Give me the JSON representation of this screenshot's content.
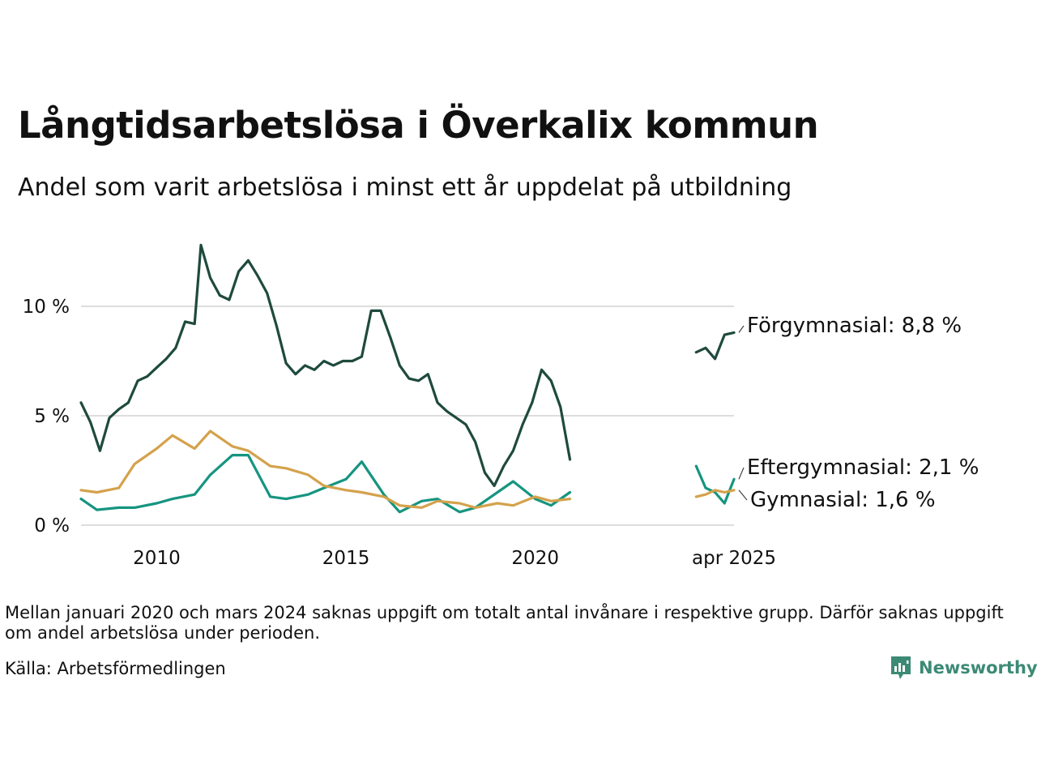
{
  "title": "Långtidsarbetslösa i Överkalix kommun",
  "subtitle": "Andel som varit arbetslösa i minst ett år uppdelat på utbildning",
  "note": "Mellan januari 2020 och mars 2024 saknas uppgift om totalt antal invånare i respektive grupp. Därför saknas uppgift om andel arbetslösa under perioden.",
  "source": "Källa: Arbetsförmedlingen",
  "brand": "Newsworthy",
  "colors": {
    "forgymnasial": "#1f4a3e",
    "eftergymnasial": "#169580",
    "gymnasial": "#d4a24c",
    "grid": "#dddddd",
    "brand": "#3c8a74"
  },
  "chart_data": {
    "type": "line",
    "x_unit": "month",
    "xlim": [
      "2008-01",
      "2025-04"
    ],
    "ylim": [
      0,
      13
    ],
    "y_ticks": [
      0,
      5,
      10
    ],
    "y_tick_labels": [
      "0 %",
      "5 %",
      "10 %"
    ],
    "x_ticks": [
      "2010-01",
      "2015-01",
      "2020-01",
      "2025-04"
    ],
    "x_tick_labels": [
      "2010",
      "2015",
      "2020",
      "apr 2025"
    ],
    "grid": true,
    "legend": "end-of-line labels",
    "segments": [
      {
        "start": "2008-01",
        "end": "2020-12"
      },
      {
        "start": "2024-04",
        "end": "2025-04"
      }
    ],
    "series": [
      {
        "key": "forgymnasial",
        "label": "Förgymnasial: 8,8 %",
        "points": [
          [
            "2008-01",
            5.6
          ],
          [
            "2008-04",
            4.7
          ],
          [
            "2008-07",
            3.4
          ],
          [
            "2008-10",
            4.9
          ],
          [
            "2009-01",
            5.3
          ],
          [
            "2009-04",
            5.6
          ],
          [
            "2009-07",
            6.6
          ],
          [
            "2009-10",
            6.8
          ],
          [
            "2010-01",
            7.2
          ],
          [
            "2010-04",
            7.6
          ],
          [
            "2010-07",
            8.1
          ],
          [
            "2010-10",
            9.3
          ],
          [
            "2011-01",
            9.2
          ],
          [
            "2011-03",
            12.8
          ],
          [
            "2011-06",
            11.3
          ],
          [
            "2011-09",
            10.5
          ],
          [
            "2011-12",
            10.3
          ],
          [
            "2012-03",
            11.6
          ],
          [
            "2012-06",
            12.1
          ],
          [
            "2012-09",
            11.4
          ],
          [
            "2012-12",
            10.6
          ],
          [
            "2013-03",
            9.1
          ],
          [
            "2013-06",
            7.4
          ],
          [
            "2013-09",
            6.9
          ],
          [
            "2013-12",
            7.3
          ],
          [
            "2014-03",
            7.1
          ],
          [
            "2014-06",
            7.5
          ],
          [
            "2014-09",
            7.3
          ],
          [
            "2014-12",
            7.5
          ],
          [
            "2015-03",
            7.5
          ],
          [
            "2015-06",
            7.7
          ],
          [
            "2015-09",
            9.8
          ],
          [
            "2015-12",
            9.8
          ],
          [
            "2016-03",
            8.6
          ],
          [
            "2016-06",
            7.3
          ],
          [
            "2016-09",
            6.7
          ],
          [
            "2016-12",
            6.6
          ],
          [
            "2017-03",
            6.9
          ],
          [
            "2017-06",
            5.6
          ],
          [
            "2017-09",
            5.2
          ],
          [
            "2017-12",
            4.9
          ],
          [
            "2018-03",
            4.6
          ],
          [
            "2018-06",
            3.8
          ],
          [
            "2018-09",
            2.4
          ],
          [
            "2018-12",
            1.8
          ],
          [
            "2019-03",
            2.7
          ],
          [
            "2019-06",
            3.4
          ],
          [
            "2019-09",
            4.6
          ],
          [
            "2019-12",
            5.6
          ],
          [
            "2020-03",
            7.1
          ],
          [
            "2020-06",
            6.6
          ],
          [
            "2020-09",
            5.4
          ],
          [
            "2020-12",
            3.0
          ],
          [
            "2024-04",
            7.9
          ],
          [
            "2024-07",
            8.1
          ],
          [
            "2024-10",
            7.6
          ],
          [
            "2025-01",
            8.7
          ],
          [
            "2025-04",
            8.8
          ]
        ]
      },
      {
        "key": "eftergymnasial",
        "label": "Eftergymnasial: 2,1 %",
        "points": [
          [
            "2008-01",
            1.2
          ],
          [
            "2008-06",
            0.7
          ],
          [
            "2009-01",
            0.8
          ],
          [
            "2009-06",
            0.8
          ],
          [
            "2010-01",
            1.0
          ],
          [
            "2010-06",
            1.2
          ],
          [
            "2011-01",
            1.4
          ],
          [
            "2011-06",
            2.3
          ],
          [
            "2012-01",
            3.2
          ],
          [
            "2012-06",
            3.2
          ],
          [
            "2013-01",
            1.3
          ],
          [
            "2013-06",
            1.2
          ],
          [
            "2014-01",
            1.4
          ],
          [
            "2014-06",
            1.7
          ],
          [
            "2015-01",
            2.1
          ],
          [
            "2015-06",
            2.9
          ],
          [
            "2016-01",
            1.4
          ],
          [
            "2016-06",
            0.6
          ],
          [
            "2017-01",
            1.1
          ],
          [
            "2017-06",
            1.2
          ],
          [
            "2018-01",
            0.6
          ],
          [
            "2018-06",
            0.8
          ],
          [
            "2019-01",
            1.5
          ],
          [
            "2019-06",
            2.0
          ],
          [
            "2020-01",
            1.2
          ],
          [
            "2020-06",
            0.9
          ],
          [
            "2020-12",
            1.5
          ],
          [
            "2024-04",
            2.7
          ],
          [
            "2024-07",
            1.7
          ],
          [
            "2024-10",
            1.5
          ],
          [
            "2025-01",
            1.0
          ],
          [
            "2025-04",
            2.1
          ]
        ]
      },
      {
        "key": "gymnasial",
        "label": "Gymnasial: 1,6 %",
        "points": [
          [
            "2008-01",
            1.6
          ],
          [
            "2008-06",
            1.5
          ],
          [
            "2009-01",
            1.7
          ],
          [
            "2009-06",
            2.8
          ],
          [
            "2010-01",
            3.5
          ],
          [
            "2010-06",
            4.1
          ],
          [
            "2011-01",
            3.5
          ],
          [
            "2011-06",
            4.3
          ],
          [
            "2012-01",
            3.6
          ],
          [
            "2012-06",
            3.4
          ],
          [
            "2013-01",
            2.7
          ],
          [
            "2013-06",
            2.6
          ],
          [
            "2014-01",
            2.3
          ],
          [
            "2014-06",
            1.8
          ],
          [
            "2015-01",
            1.6
          ],
          [
            "2015-06",
            1.5
          ],
          [
            "2016-01",
            1.3
          ],
          [
            "2016-06",
            0.9
          ],
          [
            "2017-01",
            0.8
          ],
          [
            "2017-06",
            1.1
          ],
          [
            "2018-01",
            1.0
          ],
          [
            "2018-06",
            0.8
          ],
          [
            "2019-01",
            1.0
          ],
          [
            "2019-06",
            0.9
          ],
          [
            "2020-01",
            1.3
          ],
          [
            "2020-06",
            1.1
          ],
          [
            "2020-12",
            1.2
          ],
          [
            "2024-04",
            1.3
          ],
          [
            "2024-07",
            1.4
          ],
          [
            "2024-10",
            1.6
          ],
          [
            "2025-01",
            1.5
          ],
          [
            "2025-04",
            1.6
          ]
        ]
      }
    ]
  }
}
